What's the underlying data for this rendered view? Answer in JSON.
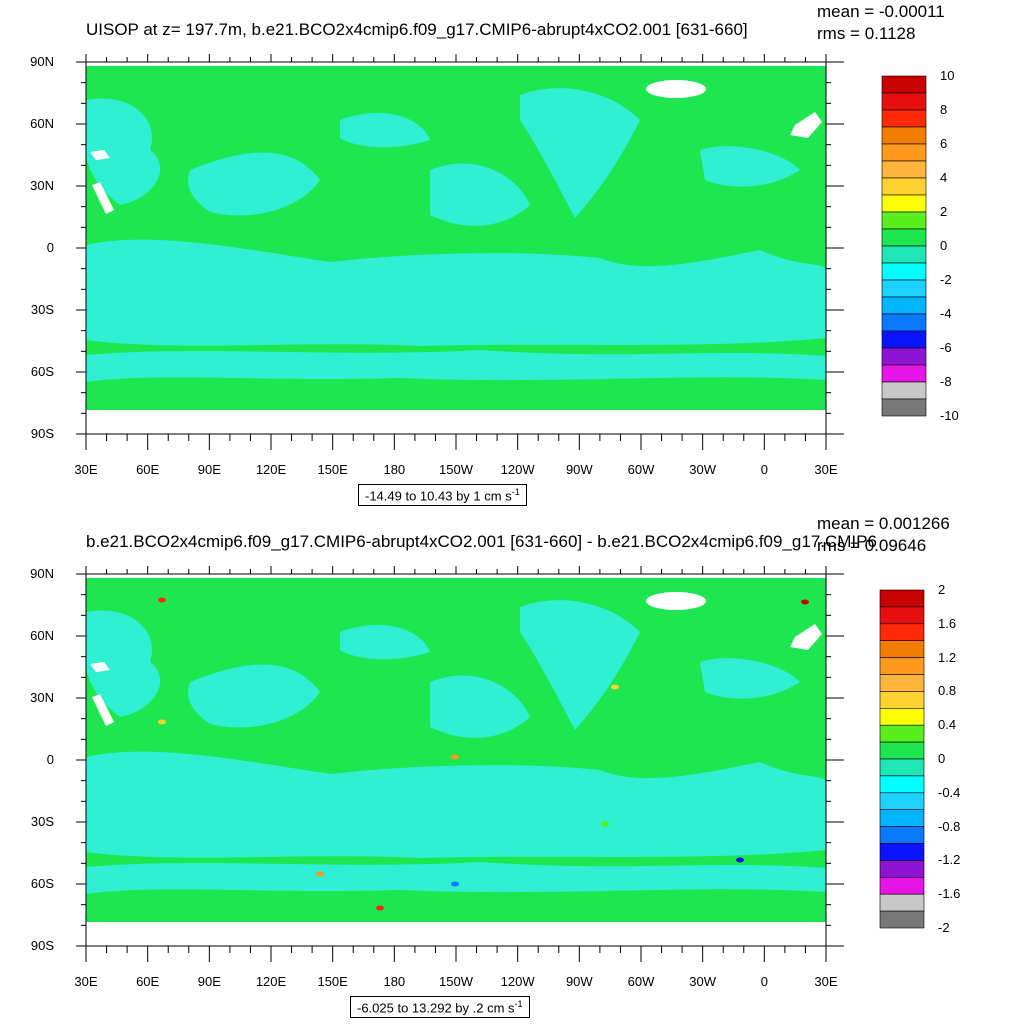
{
  "panels": [
    {
      "title": "UISOP at z= 197.7m, b.e21.BCO2x4cmip6.f09_g17.CMIP6-abrupt4xCO2.001 [631-660]",
      "mean_text": "mean = -0.00011",
      "rms_text": "rms = 0.1128",
      "range_text": "-14.49 to 10.43 by 1 cm s",
      "range_sup": "-1",
      "colorbar_labels": [
        "10",
        "8",
        "6",
        "4",
        "2",
        "0",
        "-2",
        "-4",
        "-6",
        "-8",
        "-10"
      ]
    },
    {
      "title": "b.e21.BCO2x4cmip6.f09_g17.CMIP6-abrupt4xCO2.001 [631-660] - b.e21.BCO2x4cmip6.f09_g17.CMIP6",
      "mean_text": "mean = 0.001266",
      "rms_text": "rms = 0.09646",
      "range_text": "-6.025 to 13.292 by .2 cm s",
      "range_sup": "-1",
      "colorbar_labels": [
        "2",
        "1.6",
        "1.2",
        "0.8",
        "0.4",
        "0",
        "-0.4",
        "-0.8",
        "-1.2",
        "-1.6",
        "-2"
      ]
    }
  ],
  "lat_labels": [
    "90N",
    "60N",
    "30N",
    "0",
    "30S",
    "60S",
    "90S"
  ],
  "lon_labels": [
    "30E",
    "60E",
    "90E",
    "120E",
    "150E",
    "180",
    "150W",
    "120W",
    "90W",
    "60W",
    "30W",
    "0",
    "30E"
  ],
  "colorbar_colors": [
    "#c80000",
    "#e60f0f",
    "#ff2a0a",
    "#f07c00",
    "#ff9a1e",
    "#ffb43c",
    "#ffd232",
    "#ffff00",
    "#5aee1e",
    "#1ee650",
    "#1ee6b4",
    "#00ffff",
    "#1ed2ff",
    "#00b4ff",
    "#0a78ff",
    "#0a14ff",
    "#8c14d2",
    "#e614e6",
    "#c8c8c8",
    "#787878"
  ],
  "colors": {
    "land_green": "#1ee650",
    "ocean_cyan": "#2ff0d2",
    "missing": "#ffffff"
  }
}
